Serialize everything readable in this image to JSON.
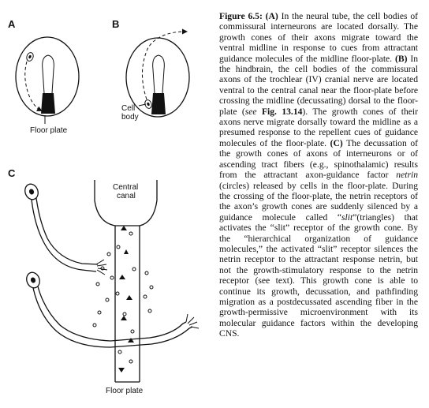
{
  "figure": {
    "panels": {
      "a": "A",
      "b": "B",
      "c": "C"
    },
    "labels": {
      "floor_plate_a": "Floor plate",
      "cell_body_1": "Cell",
      "cell_body_2": "body",
      "central_canal_1": "Central",
      "central_canal_2": "canal",
      "floor_plate_c": "Floor plate"
    }
  },
  "caption": {
    "title": "Figure 6.5:",
    "a_marker": "(A)",
    "a_text": "In the neural tube, the cell bodies of commissural interneurons are located dorsally. The growth cones of their axons migrate toward the ventral midline in response to cues from attractant guidance molecules of the midline floor-plate.",
    "b_marker": "(B)",
    "b_text": "In the hindbrain, the cell bodies of the commissural axons of the trochlear (IV) cranial nerve are located ventral to the central canal near the floor-plate before crossing the midline (decussating) dorsal to the floor-plate (",
    "b_see": "see",
    "b_ref": "Fig. 13.14",
    "b_text2": "). The growth cones of their axons nerve migrate dorsally toward the midline as a presumed response to the repellent cues of guidance molecules of the floor-plate.",
    "c_marker": "(C)",
    "c_text": "The decussation of the growth cones of axons of interneurons or of ascending tract fibers (e.g., spinothalamic) results from the attractant axon-guidance factor",
    "netrin": "netrin",
    "c_text2": "(circles) released by cells in the floor-plate. During the crossing of the floor-plate, the netrin receptors of the axon’s growth cones are suddenly silenced by a guidance molecule called “",
    "slit": "slit",
    "c_text3": "”(triangles) that activates the “slit” receptor of the growth cone. By the “hierarchical organization of guidance molecules,” the activated “slit” receptor silences the netrin receptor to the attractant response netrin, but not the growth-stimulatory response to the netrin receptor (see text). This growth cone is able to continue its growth, decussation, and pathfinding migration as a postdecussated ascending fiber in the growth-permissive microenvironment with its molecular guidance factors within the developing CNS."
  }
}
